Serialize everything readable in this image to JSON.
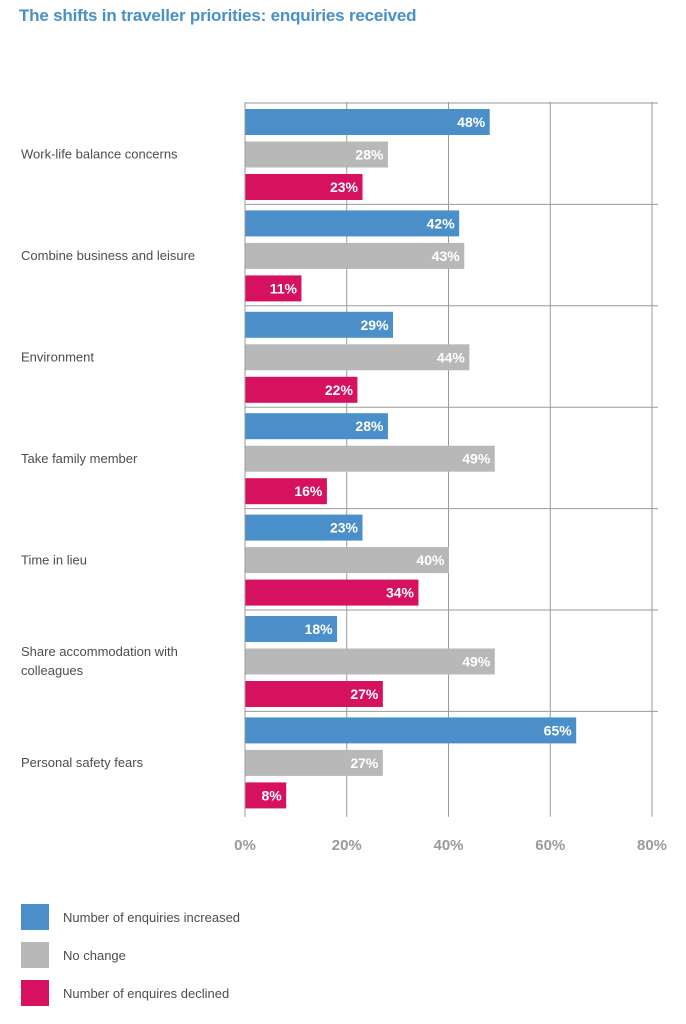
{
  "chart_data": {
    "type": "bar",
    "orientation": "horizontal",
    "title": "The shifts in traveller priorities: enquiries received",
    "categories": [
      "Work-life balance concerns",
      "Combine business and leisure",
      "Environment",
      "Take family member",
      "Time in lieu",
      "Share accommodation with colleagues",
      "Personal safety fears"
    ],
    "category_lines": [
      [
        "Work-life balance concerns"
      ],
      [
        "Combine business and leisure"
      ],
      [
        "Environment"
      ],
      [
        "Take family member"
      ],
      [
        "Time in lieu"
      ],
      [
        "Share accommodation with",
        "colleagues"
      ],
      [
        "Personal safety fears"
      ]
    ],
    "series": [
      {
        "name": "Number of enquiries increased",
        "color": "#4a8fc9",
        "values": [
          48,
          42,
          29,
          28,
          23,
          18,
          65
        ]
      },
      {
        "name": "No change",
        "color": "#b8b8b8",
        "values": [
          28,
          43,
          44,
          49,
          40,
          49,
          27
        ]
      },
      {
        "name": "Number of enquires declined",
        "color": "#d6115f",
        "values": [
          23,
          11,
          22,
          16,
          34,
          27,
          8
        ]
      }
    ],
    "value_suffix": "%",
    "xlim": [
      0,
      80
    ],
    "xticks": [
      0,
      20,
      40,
      60,
      80
    ],
    "xtick_labels": [
      "0%",
      "20%",
      "40%",
      "60%",
      "80%"
    ],
    "xlabel": "",
    "ylabel": "",
    "grid": true,
    "legend_position": "bottom-left"
  }
}
